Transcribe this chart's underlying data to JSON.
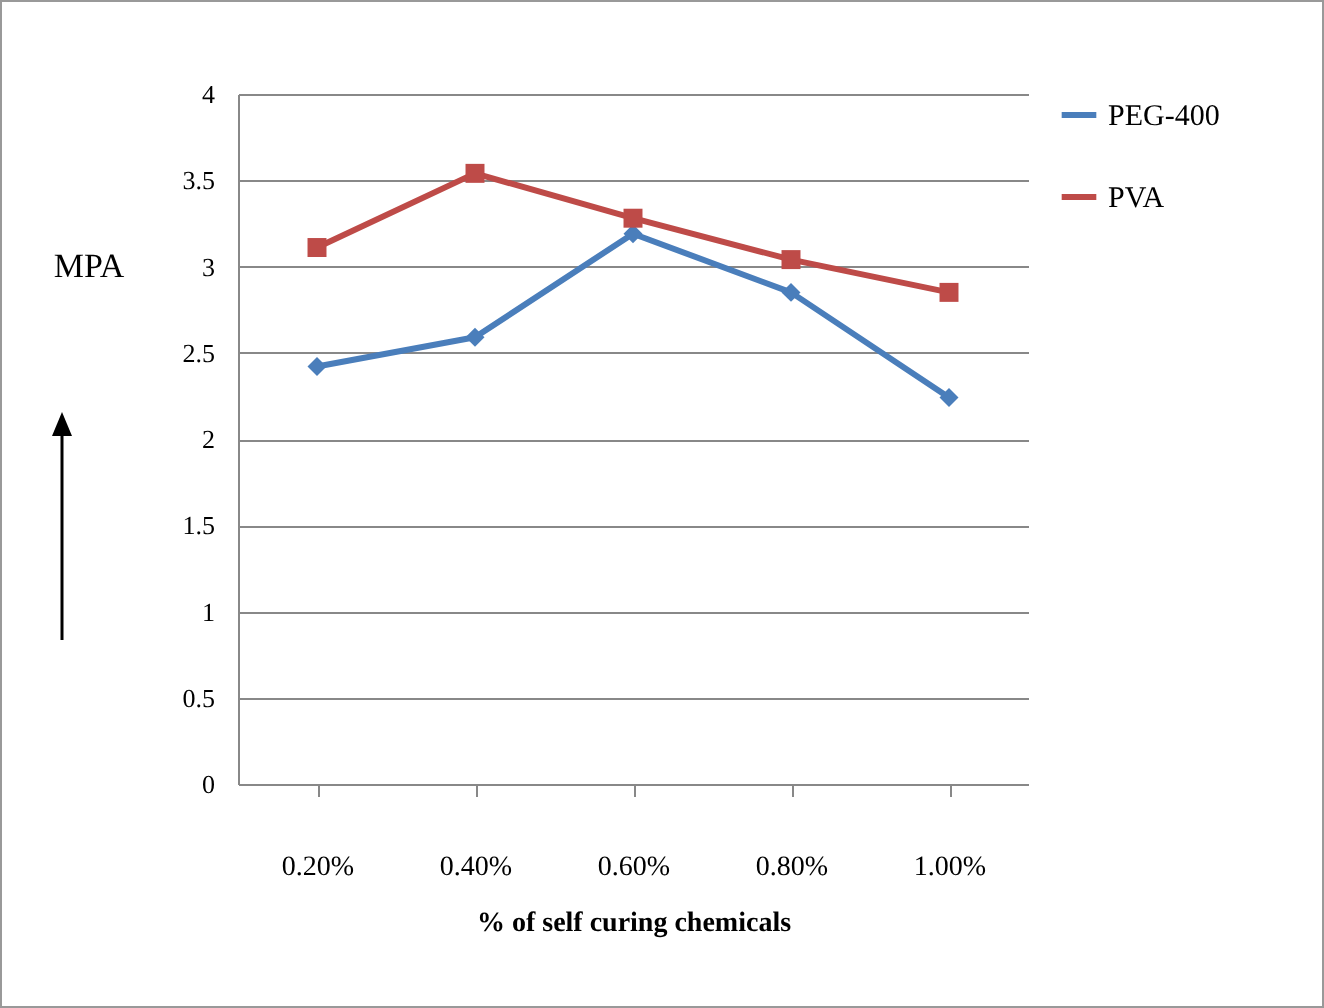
{
  "chart_data": {
    "type": "line",
    "xlabel": "% of self curing chemicals",
    "ylabel": "MPA",
    "categories": [
      "0.20%",
      "0.40%",
      "0.60%",
      "0.80%",
      "1.00%"
    ],
    "series": [
      {
        "name": "PEG-400",
        "color": "#4a7ebb",
        "marker": "diamond",
        "values": [
          2.42,
          2.59,
          3.19,
          2.85,
          2.24
        ]
      },
      {
        "name": "PVA",
        "color": "#be4b48",
        "marker": "square",
        "values": [
          3.11,
          3.54,
          3.28,
          3.04,
          2.85
        ]
      }
    ],
    "ylim": [
      0,
      4
    ],
    "yticks": [
      0,
      0.5,
      1,
      1.5,
      2,
      2.5,
      3,
      3.5,
      4
    ],
    "grid": "y",
    "legend": "right"
  }
}
